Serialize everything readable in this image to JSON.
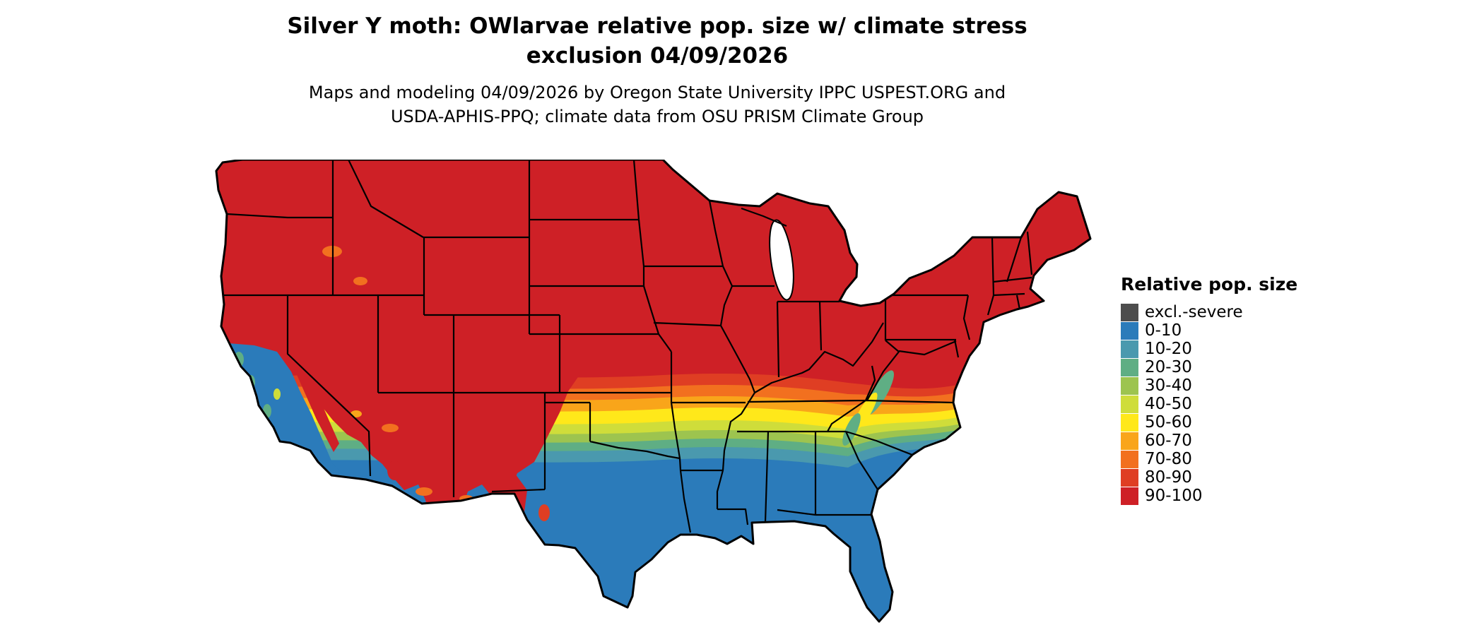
{
  "header": {
    "title_line1": "Silver Y moth: OWlarvae relative pop. size w/ climate stress",
    "title_line2": "exclusion 04/09/2026",
    "subtitle_line1": "Maps and modeling 04/09/2026 by Oregon State University IPPC USPEST.ORG and",
    "subtitle_line2": "USDA-APHIS-PPQ; climate data from OSU PRISM Climate Group"
  },
  "legend": {
    "title": "Relative pop. size",
    "items": [
      {
        "label": "excl.-severe",
        "color": "#4D4D4D"
      },
      {
        "label": "0-10",
        "color": "#2B7BBA"
      },
      {
        "label": "10-20",
        "color": "#4A99AE"
      },
      {
        "label": "20-30",
        "color": "#5FAE84"
      },
      {
        "label": "30-40",
        "color": "#9DC44F"
      },
      {
        "label": "40-50",
        "color": "#CFDD3A"
      },
      {
        "label": "50-60",
        "color": "#FFE81A"
      },
      {
        "label": "60-70",
        "color": "#F9A51A"
      },
      {
        "label": "70-80",
        "color": "#F2701F"
      },
      {
        "label": "80-90",
        "color": "#DF3E23"
      },
      {
        "label": "90-100",
        "color": "#CE2026"
      }
    ]
  },
  "map_data": {
    "type": "choropleth-raster",
    "region": "Continental United States",
    "value_name": "Relative pop. size",
    "pattern_north_to_south": [
      "90-100",
      "80-90",
      "70-80",
      "60-70",
      "50-60",
      "40-50",
      "30-40",
      "20-30",
      "10-20",
      "0-10"
    ],
    "notes_visible": "Northern half of CONUS solid red (90-100); transition bands of orange/yellow/green across the central latitudes; southern states solid blue (0-10); coastal California blue/green with red mountain ridges; red high-elevation patches in Arizona and New Mexico; white lakes and black state borders",
    "border_color": "#000000",
    "background_color": "#FFFFFF"
  }
}
